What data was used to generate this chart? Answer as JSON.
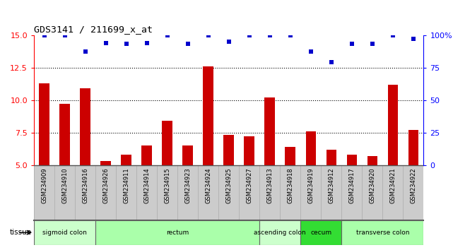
{
  "title": "GDS3141 / 211699_x_at",
  "samples": [
    "GSM234909",
    "GSM234910",
    "GSM234916",
    "GSM234926",
    "GSM234911",
    "GSM234914",
    "GSM234915",
    "GSM234923",
    "GSM234924",
    "GSM234925",
    "GSM234927",
    "GSM234913",
    "GSM234918",
    "GSM234919",
    "GSM234912",
    "GSM234917",
    "GSM234920",
    "GSM234921",
    "GSM234922"
  ],
  "bar_values": [
    11.3,
    9.7,
    10.9,
    5.3,
    5.8,
    6.5,
    8.4,
    6.5,
    12.6,
    7.3,
    7.2,
    10.2,
    6.4,
    7.6,
    6.2,
    5.8,
    5.7,
    11.2,
    7.7
  ],
  "blue_values": [
    100,
    100,
    87,
    94,
    93,
    94,
    100,
    93,
    100,
    95,
    100,
    100,
    100,
    87,
    79,
    93,
    93,
    100,
    97
  ],
  "ylim_left": [
    5,
    15
  ],
  "ylim_right": [
    0,
    100
  ],
  "yticks_left": [
    5,
    7.5,
    10,
    12.5,
    15
  ],
  "yticks_right": [
    0,
    25,
    50,
    75,
    100
  ],
  "bar_color": "#cc0000",
  "dot_color": "#0000cc",
  "grid_lines": [
    7.5,
    10,
    12.5
  ],
  "tissue_groups": [
    {
      "label": "sigmoid colon",
      "start": 0,
      "end": 3,
      "color": "#ccffcc"
    },
    {
      "label": "rectum",
      "start": 3,
      "end": 11,
      "color": "#aaffaa"
    },
    {
      "label": "ascending colon",
      "start": 11,
      "end": 13,
      "color": "#ccffcc"
    },
    {
      "label": "cecum",
      "start": 13,
      "end": 15,
      "color": "#33dd33"
    },
    {
      "label": "transverse colon",
      "start": 15,
      "end": 19,
      "color": "#aaffaa"
    }
  ],
  "bg_color": "#ffffff",
  "xtick_bg": "#cccccc",
  "cell_edge_color": "#aaaaaa"
}
